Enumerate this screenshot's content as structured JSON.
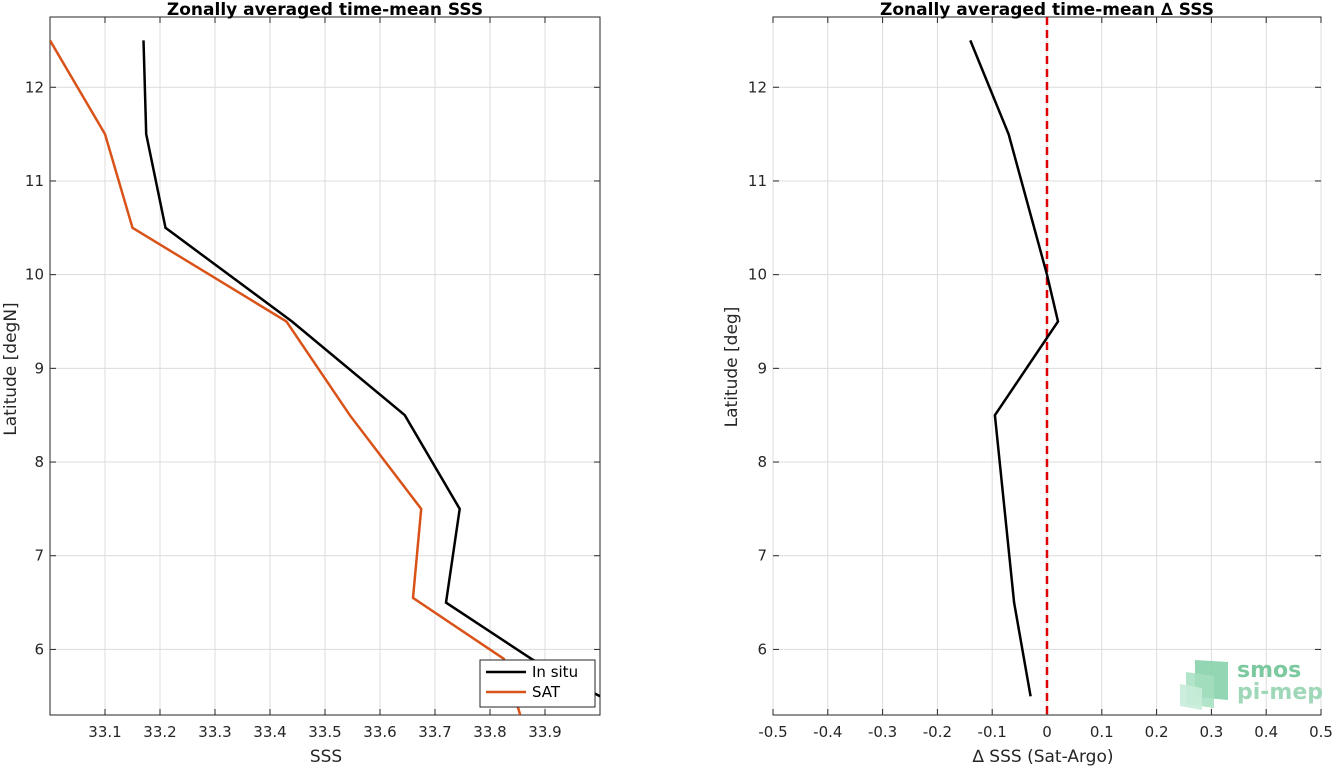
{
  "chart_data": [
    {
      "type": "line",
      "title": "Zonally averaged time-mean SSS",
      "xlabel": "SSS",
      "ylabel": "Latitude [degN]",
      "xlim": [
        33.0,
        34.0
      ],
      "ylim": [
        5.3,
        12.75
      ],
      "x_ticks": [
        "33.1",
        "33.2",
        "33.3",
        "33.4",
        "33.5",
        "33.6",
        "33.7",
        "33.8",
        "33.9"
      ],
      "y_ticks": [
        "6",
        "7",
        "8",
        "9",
        "10",
        "11",
        "12"
      ],
      "grid": true,
      "legend": "bottom-right",
      "series": [
        {
          "name": "In situ",
          "color": "#000000",
          "x": [
            33.17,
            33.175,
            33.21,
            33.44,
            33.645,
            33.745,
            33.72,
            33.875,
            34.0
          ],
          "y": [
            12.5,
            11.5,
            10.5,
            9.5,
            8.5,
            7.5,
            6.5,
            5.9,
            5.5
          ]
        },
        {
          "name": "SAT",
          "color": "#d95319",
          "x": [
            33.0,
            33.1,
            33.15,
            33.43,
            33.545,
            33.675,
            33.66,
            33.825,
            33.855
          ],
          "y": [
            12.5,
            11.5,
            10.5,
            9.5,
            8.5,
            7.5,
            6.55,
            5.9,
            5.3
          ]
        }
      ]
    },
    {
      "type": "line",
      "title": "Zonally averaged time-mean ∆ SSS",
      "xlabel": "∆ SSS (Sat-Argo)",
      "ylabel": "Latitude [deg]",
      "xlim": [
        -0.5,
        0.5
      ],
      "ylim": [
        5.3,
        12.75
      ],
      "x_ticks": [
        "-0.5",
        "-0.4",
        "-0.3",
        "-0.2",
        "-0.1",
        "0",
        "0.1",
        "0.2",
        "0.3",
        "0.4",
        "0.5"
      ],
      "y_ticks": [
        "6",
        "7",
        "8",
        "9",
        "10",
        "11",
        "12"
      ],
      "grid": true,
      "reference_line": {
        "x": 0,
        "color": "#e00000",
        "style": "dashed"
      },
      "series": [
        {
          "color": "#000000",
          "x": [
            -0.14,
            -0.07,
            0.0,
            0.02,
            -0.095,
            -0.06,
            -0.03
          ],
          "y": [
            12.5,
            11.5,
            10.0,
            9.5,
            8.5,
            6.5,
            5.5
          ]
        }
      ]
    }
  ],
  "logo": {
    "line1": "smos",
    "line2": "pi-mep"
  }
}
